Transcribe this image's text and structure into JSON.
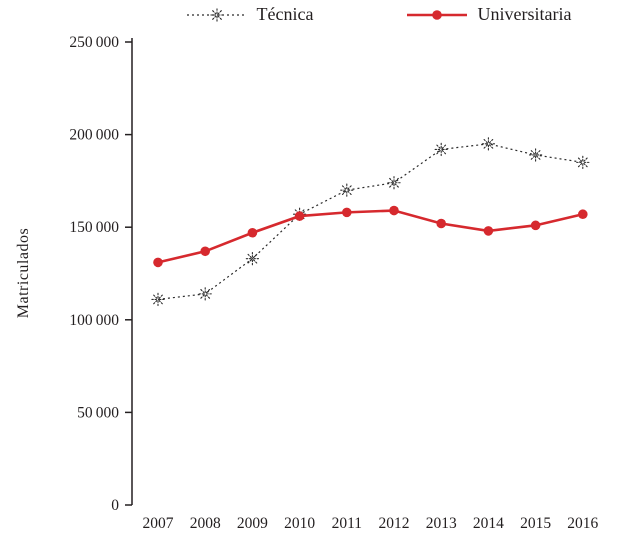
{
  "chart_data": {
    "type": "line",
    "x": [
      "2007",
      "2008",
      "2009",
      "2010",
      "2011",
      "2012",
      "2013",
      "2014",
      "2015",
      "2016"
    ],
    "series": [
      {
        "id": "tecnica",
        "name": "Técnica",
        "color": "#2b2b2b",
        "line_style": "dotted",
        "marker": "asterisk",
        "values": [
          111000,
          114000,
          133000,
          157000,
          170000,
          174000,
          192000,
          195000,
          189000,
          185000
        ]
      },
      {
        "id": "universitaria",
        "name": "Universitaria",
        "color": "#d6292e",
        "line_style": "solid",
        "marker": "circle",
        "values": [
          131000,
          137000,
          147000,
          156000,
          158000,
          159000,
          152000,
          148000,
          151000,
          157000
        ]
      }
    ],
    "title": "",
    "xlabel": "",
    "ylabel": "Matriculados",
    "ylim": [
      0,
      250000
    ],
    "yticks": [
      0,
      50000,
      100000,
      150000,
      200000,
      250000
    ],
    "ytick_labels": [
      "0",
      "50 000",
      "100 000",
      "150 000",
      "200 000",
      "250 000"
    ],
    "grid": false,
    "legend_position": "top"
  }
}
